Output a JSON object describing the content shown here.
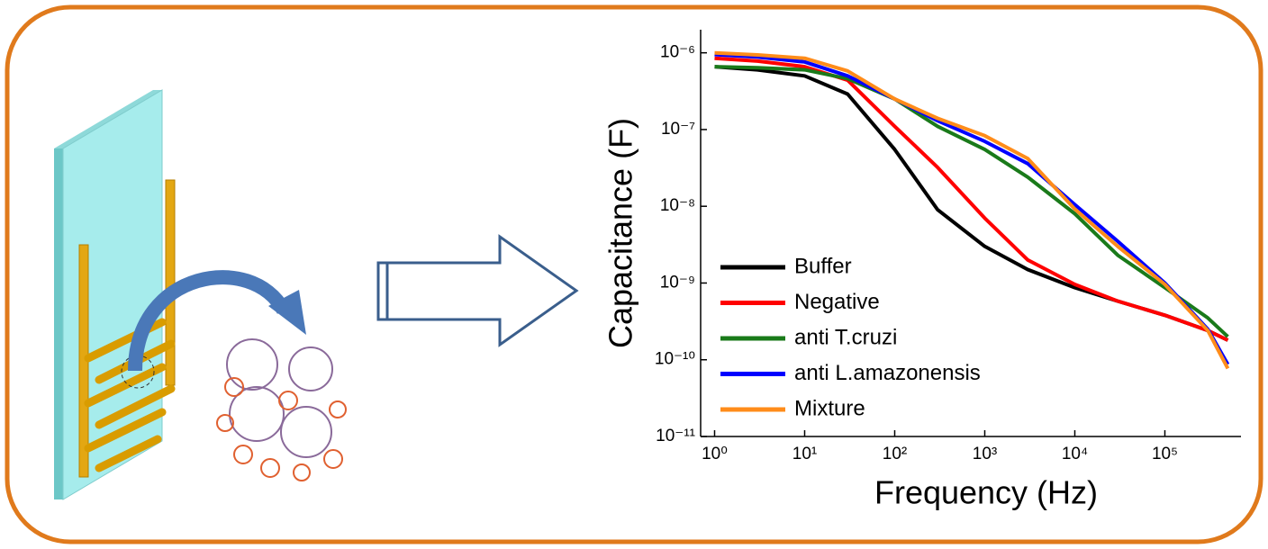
{
  "chart_data": {
    "type": "line",
    "x_label": "Frequency (Hz)",
    "y_label": "Capacitance (F)",
    "x_log": true,
    "y_log": true,
    "legend_position": "lower-left",
    "xlim": [
      0.7,
      700000
    ],
    "ylim": [
      1e-11,
      2e-06
    ],
    "xticks": [
      {
        "value": 1,
        "label": "10⁰"
      },
      {
        "value": 10,
        "label": "10¹"
      },
      {
        "value": 100,
        "label": "10²"
      },
      {
        "value": 1000,
        "label": "10³"
      },
      {
        "value": 10000,
        "label": "10⁴"
      },
      {
        "value": 100000,
        "label": "10⁵"
      }
    ],
    "yticks": [
      {
        "value": 1e-11,
        "label": "10⁻¹¹"
      },
      {
        "value": 1e-10,
        "label": "10⁻¹⁰"
      },
      {
        "value": 1e-09,
        "label": "10⁻⁹"
      },
      {
        "value": 1e-08,
        "label": "10⁻⁸"
      },
      {
        "value": 1e-07,
        "label": "10⁻⁷"
      },
      {
        "value": 1e-06,
        "label": "10⁻⁶"
      }
    ],
    "x": [
      1,
      3,
      10,
      30,
      100,
      300,
      1000,
      3000,
      10000,
      30000,
      100000,
      300000,
      500000
    ],
    "series": [
      {
        "name": "Buffer",
        "color": "#000000",
        "values": [
          6.6e-07,
          6e-07,
          5e-07,
          2.9e-07,
          5.5e-08,
          9e-09,
          3e-09,
          1.5e-09,
          8.7e-10,
          5.8e-10,
          3.8e-10,
          2.4e-10,
          1.8e-10
        ]
      },
      {
        "name": "Negative",
        "color": "#ff0000",
        "values": [
          8.5e-07,
          7.8e-07,
          6.6e-07,
          4.4e-07,
          1.1e-07,
          3.2e-08,
          7e-09,
          2e-09,
          9.6e-10,
          5.8e-10,
          3.8e-10,
          2.4e-10,
          1.8e-10
        ]
      },
      {
        "name": "anti T.cruzi",
        "color": "#1a7a1a",
        "values": [
          6.6e-07,
          6.4e-07,
          6e-07,
          4.6e-07,
          2.5e-07,
          1.1e-07,
          5.5e-08,
          2.4e-08,
          8e-09,
          2.3e-09,
          8.7e-10,
          3.5e-10,
          2e-10
        ]
      },
      {
        "name": "anti L.amazonensis",
        "color": "#0000ff",
        "values": [
          9.5e-07,
          8.8e-07,
          7.6e-07,
          5e-07,
          2.5e-07,
          1.3e-07,
          7e-08,
          3.6e-08,
          1.05e-08,
          3.5e-09,
          1e-09,
          2.5e-10,
          8.7e-11
        ]
      },
      {
        "name": "Mixture",
        "color": "#ff8c1a",
        "values": [
          1e-06,
          9.4e-07,
          8.5e-07,
          5.8e-07,
          2.5e-07,
          1.4e-07,
          8.3e-08,
          4.2e-08,
          9.2e-09,
          3e-09,
          9.6e-10,
          2.4e-10,
          7.7e-11
        ]
      }
    ]
  }
}
